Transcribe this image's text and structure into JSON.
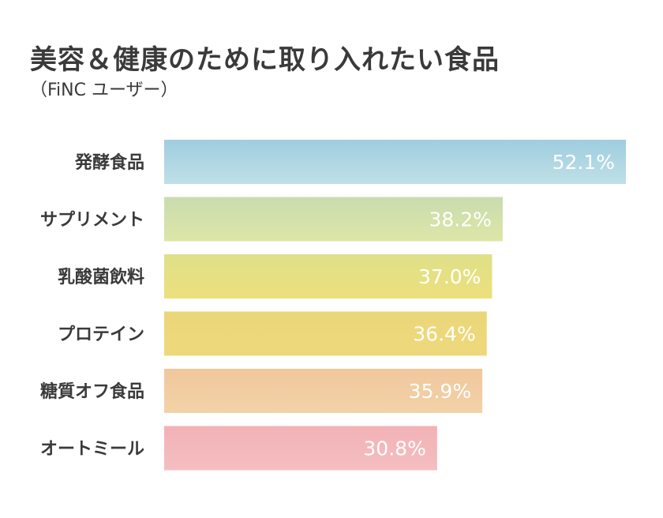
{
  "chart_data": {
    "type": "bar",
    "orientation": "horizontal",
    "title": "美容＆健康のために取り入れたい食品",
    "subtitle": "（FiNC ユーザー）",
    "categories": [
      "発酵食品",
      "サプリメント",
      "乳酸菌飲料",
      "プロテイン",
      "糖質オフ食品",
      "オートミール"
    ],
    "values": [
      52.1,
      38.2,
      37.0,
      36.4,
      35.9,
      30.8
    ],
    "value_labels": [
      "52.1%",
      "38.2%",
      "37.0%",
      "36.4%",
      "35.9%",
      "30.8%"
    ],
    "xlim": [
      0,
      52.1
    ],
    "grid": false,
    "legend": "none",
    "bar_gradients": [
      [
        "#9fcde0",
        "#bfe0e6"
      ],
      [
        "#c9dcae",
        "#dde6a8"
      ],
      [
        "#dfe08a",
        "#ece07c"
      ],
      [
        "#ead77a",
        "#efd87c"
      ],
      [
        "#f1c79c",
        "#f3d2a8"
      ],
      [
        "#f2b2b6",
        "#f4bec0"
      ]
    ]
  }
}
